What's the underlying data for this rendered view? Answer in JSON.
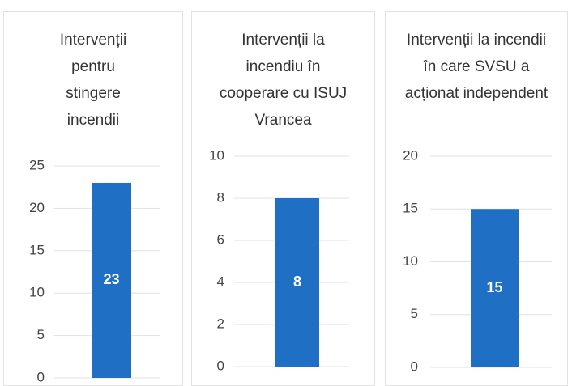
{
  "chart_data": [
    {
      "type": "bar",
      "title": "Intervenții pentru stingere incendii",
      "categories": [
        null
      ],
      "values": [
        23
      ],
      "color": "#1f6fc5",
      "ylim": [
        0,
        25
      ],
      "yticks": [
        0,
        5,
        10,
        15,
        20,
        25
      ],
      "grid": true
    },
    {
      "type": "bar",
      "title": "Intervenții la incendiu în cooperare cu ISUJ Vrancea",
      "categories": [
        null
      ],
      "values": [
        8
      ],
      "color": "#1f6fc5",
      "ylim": [
        0,
        10
      ],
      "yticks": [
        0,
        2,
        4,
        6,
        8,
        10
      ],
      "grid": true
    },
    {
      "type": "bar",
      "title": "Intervenții la incendii în care SVSU a acționat independent",
      "categories": [
        null
      ],
      "values": [
        15
      ],
      "color": "#1f6fc5",
      "ylim": [
        0,
        20
      ],
      "yticks": [
        0,
        5,
        10,
        15,
        20
      ],
      "grid": true
    }
  ]
}
